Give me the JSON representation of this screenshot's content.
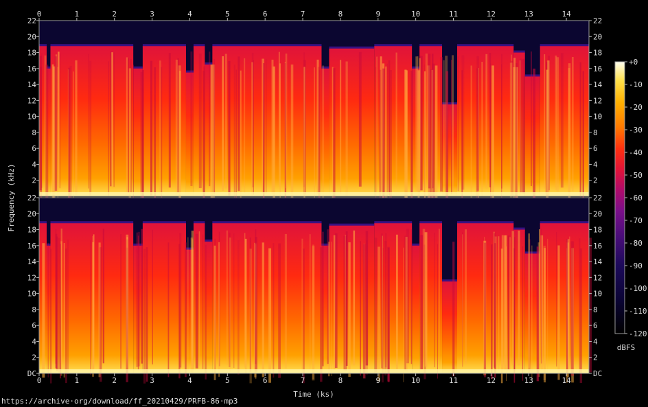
{
  "chart_data": {
    "type": "heatmap",
    "subtype": "spectrogram",
    "channels": 2,
    "xlabel": "Time (ks)",
    "ylabel": "Frequency (kHz)",
    "xlim": [
      0,
      14.6
    ],
    "xticks": [
      "0",
      "1",
      "2",
      "3",
      "4",
      "5",
      "6",
      "7",
      "8",
      "9",
      "10",
      "11",
      "12",
      "13",
      "14"
    ],
    "ylim": [
      0,
      22
    ],
    "yticks_top": [
      "22",
      "20",
      "18",
      "16",
      "14",
      "12",
      "10",
      "8",
      "6",
      "4",
      "2"
    ],
    "yticks_bottom": [
      "22",
      "20",
      "18",
      "16",
      "14",
      "12",
      "10",
      "8",
      "6",
      "4",
      "2",
      "DC"
    ],
    "upper_cutoff_khz_by_segment": [
      {
        "t": [
          0.0,
          0.2
        ],
        "cutoff": 18.8
      },
      {
        "t": [
          0.2,
          0.3
        ],
        "cutoff": 16.0
      },
      {
        "t": [
          0.3,
          2.5
        ],
        "cutoff": 18.8
      },
      {
        "t": [
          2.5,
          2.75
        ],
        "cutoff": 16.0
      },
      {
        "t": [
          2.75,
          3.9
        ],
        "cutoff": 18.8
      },
      {
        "t": [
          3.9,
          4.1
        ],
        "cutoff": 15.5
      },
      {
        "t": [
          4.1,
          4.4
        ],
        "cutoff": 18.8
      },
      {
        "t": [
          4.4,
          4.6
        ],
        "cutoff": 16.5
      },
      {
        "t": [
          4.6,
          7.5
        ],
        "cutoff": 18.8
      },
      {
        "t": [
          7.5,
          7.7
        ],
        "cutoff": 16.0
      },
      {
        "t": [
          7.7,
          8.9
        ],
        "cutoff": 18.5
      },
      {
        "t": [
          8.9,
          9.9
        ],
        "cutoff": 18.8
      },
      {
        "t": [
          9.9,
          10.1
        ],
        "cutoff": 16.0
      },
      {
        "t": [
          10.1,
          10.7
        ],
        "cutoff": 18.8
      },
      {
        "t": [
          10.7,
          11.1
        ],
        "cutoff": 11.5
      },
      {
        "t": [
          11.1,
          12.6
        ],
        "cutoff": 18.8
      },
      {
        "t": [
          12.6,
          12.9
        ],
        "cutoff": 18.0
      },
      {
        "t": [
          12.9,
          13.3
        ],
        "cutoff": 15.0
      },
      {
        "t": [
          13.3,
          14.6
        ],
        "cutoff": 18.8
      }
    ],
    "colorbar": {
      "label": "dBFS",
      "range": [
        -120,
        0
      ],
      "ticks": [
        "+0",
        "-10",
        "-20",
        "-30",
        "-40",
        "-50",
        "-60",
        "-70",
        "-80",
        "-90",
        "-100",
        "-110",
        "-120"
      ],
      "colormap": [
        "#000000",
        "#0a0433",
        "#1c0a5a",
        "#4b0d7a",
        "#7a0f8a",
        "#b00b6a",
        "#e0133a",
        "#ff3010",
        "#ff7a00",
        "#ffb000",
        "#ffe04a",
        "#fffef0"
      ]
    },
    "grid": false
  },
  "footer": {
    "source_url": "https://archive·org/download/ff_20210429/PRFB-86·mp3"
  }
}
